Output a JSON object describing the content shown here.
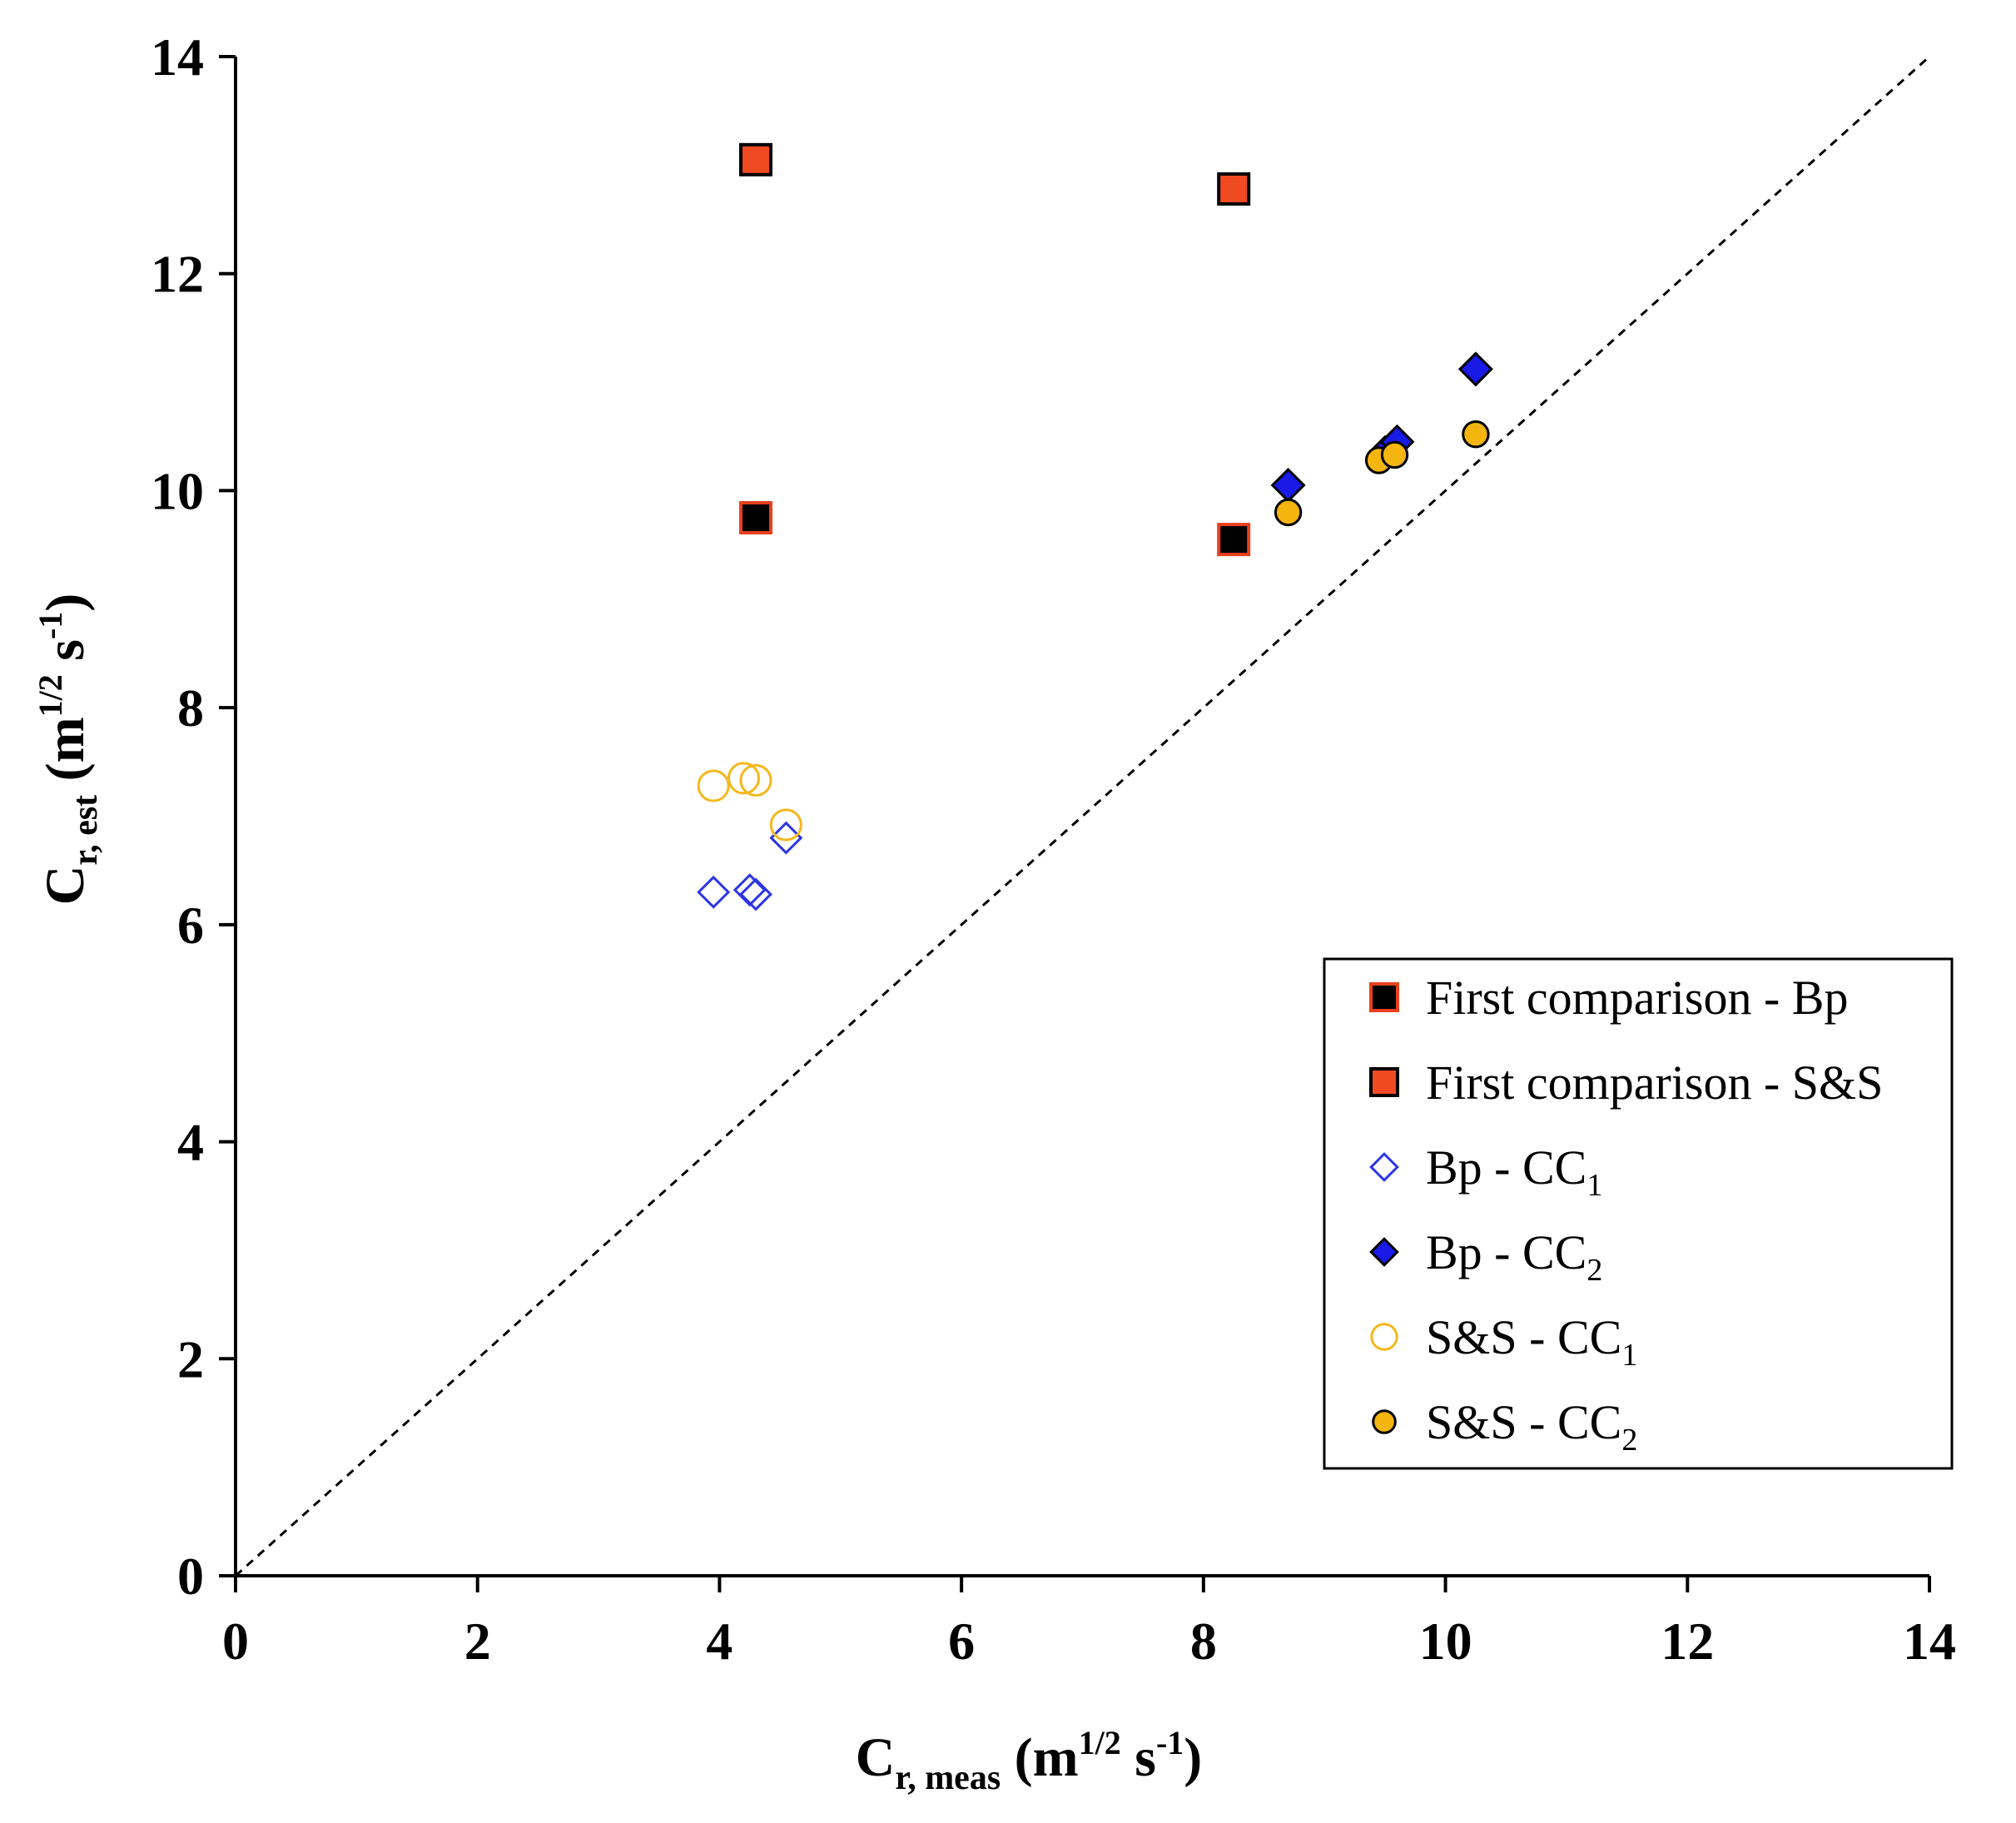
{
  "chart_data": {
    "type": "scatter",
    "title": "",
    "xlabel": {
      "main": "C",
      "sub": "r, meas",
      "unit_open": " (m",
      "unit_sup": "1/2",
      "unit_mid": " s",
      "unit_sup2": "-1",
      "unit_close": ")"
    },
    "ylabel": {
      "main": "C",
      "sub": "r, est",
      "unit_open": " (m",
      "unit_sup": "1/2",
      "unit_mid": " s",
      "unit_sup2": "-1",
      "unit_close": ")"
    },
    "xlim": [
      0,
      14
    ],
    "ylim": [
      0,
      14
    ],
    "x_ticks": [
      "0",
      "2",
      "4",
      "6",
      "8",
      "10",
      "12",
      "14"
    ],
    "y_ticks": [
      "0",
      "2",
      "4",
      "6",
      "8",
      "10",
      "12",
      "14"
    ],
    "reference_line": {
      "name": "1:1 line",
      "style": "dashed",
      "color": "#000000",
      "from": [
        0,
        0
      ],
      "to": [
        14,
        14
      ]
    },
    "legend_position": "bottom-right",
    "series": [
      {
        "name": "First comparison - Bp",
        "label_main": "First comparison - Bp",
        "label_sub": "",
        "marker": "square",
        "fill": "#000000",
        "stroke": "#e8401c",
        "points": [
          [
            4.3,
            9.75
          ],
          [
            8.25,
            9.55
          ]
        ]
      },
      {
        "name": "First comparison - S&S",
        "label_main": "First comparison - S&S",
        "label_sub": "",
        "marker": "square",
        "fill": "#f04a23",
        "stroke": "#000000",
        "points": [
          [
            4.3,
            13.05
          ],
          [
            8.25,
            12.78
          ]
        ]
      },
      {
        "name": "Bp - CC1",
        "label_main": "Bp - CC",
        "label_sub": "1",
        "marker": "diamond-open",
        "fill": "none",
        "stroke": "#2b35e6",
        "points": [
          [
            3.95,
            6.3
          ],
          [
            4.25,
            6.32
          ],
          [
            4.3,
            6.28
          ],
          [
            4.55,
            6.8
          ]
        ]
      },
      {
        "name": "Bp - CC2",
        "label_main": "Bp - CC",
        "label_sub": "2",
        "marker": "diamond",
        "fill": "#1a1ae6",
        "stroke": "#000000",
        "points": [
          [
            8.7,
            10.05
          ],
          [
            9.5,
            10.35
          ],
          [
            9.6,
            10.45
          ],
          [
            10.25,
            11.12
          ]
        ]
      },
      {
        "name": "S&S - CC1",
        "label_main": "S&S - CC",
        "label_sub": "1",
        "marker": "circle-open",
        "fill": "none",
        "stroke": "#f5b81c",
        "points": [
          [
            3.95,
            7.28
          ],
          [
            4.2,
            7.35
          ],
          [
            4.3,
            7.33
          ],
          [
            4.55,
            6.92
          ]
        ]
      },
      {
        "name": "S&S - CC2",
        "label_main": "S&S - CC",
        "label_sub": "2",
        "marker": "circle",
        "fill": "#f5b50f",
        "stroke": "#000000",
        "points": [
          [
            8.7,
            9.8
          ],
          [
            9.45,
            10.28
          ],
          [
            9.58,
            10.33
          ],
          [
            10.25,
            10.52
          ]
        ]
      }
    ]
  }
}
